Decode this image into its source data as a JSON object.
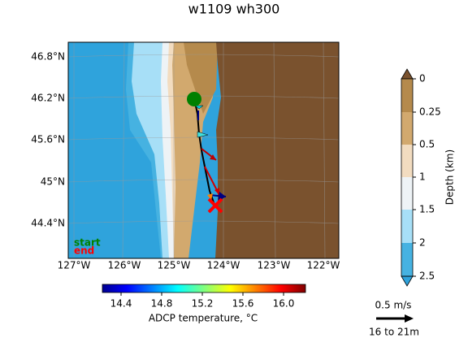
{
  "title": "w1109 wh300",
  "map": {
    "lat_ticks": [
      "46.8°N",
      "46.2°N",
      "45.6°N",
      "45°N",
      "44.4°N"
    ],
    "lon_ticks": [
      "127°W",
      "126°W",
      "125°W",
      "124°W",
      "123°W",
      "122°W"
    ],
    "legend": {
      "start": "start",
      "end": "end"
    }
  },
  "temperature_colorbar": {
    "ticks": [
      "14.4",
      "14.8",
      "15.2",
      "15.6",
      "16.0"
    ],
    "label": "ADCP temperature, °C"
  },
  "depth_colorbar": {
    "ticks": [
      "0",
      "0.25",
      "0.5",
      "1",
      "1.5",
      "2",
      "2.5"
    ],
    "label": "Depth (km)"
  },
  "scale": {
    "speed": "0.5 m/s",
    "depth_range": "16 to 21m"
  }
}
